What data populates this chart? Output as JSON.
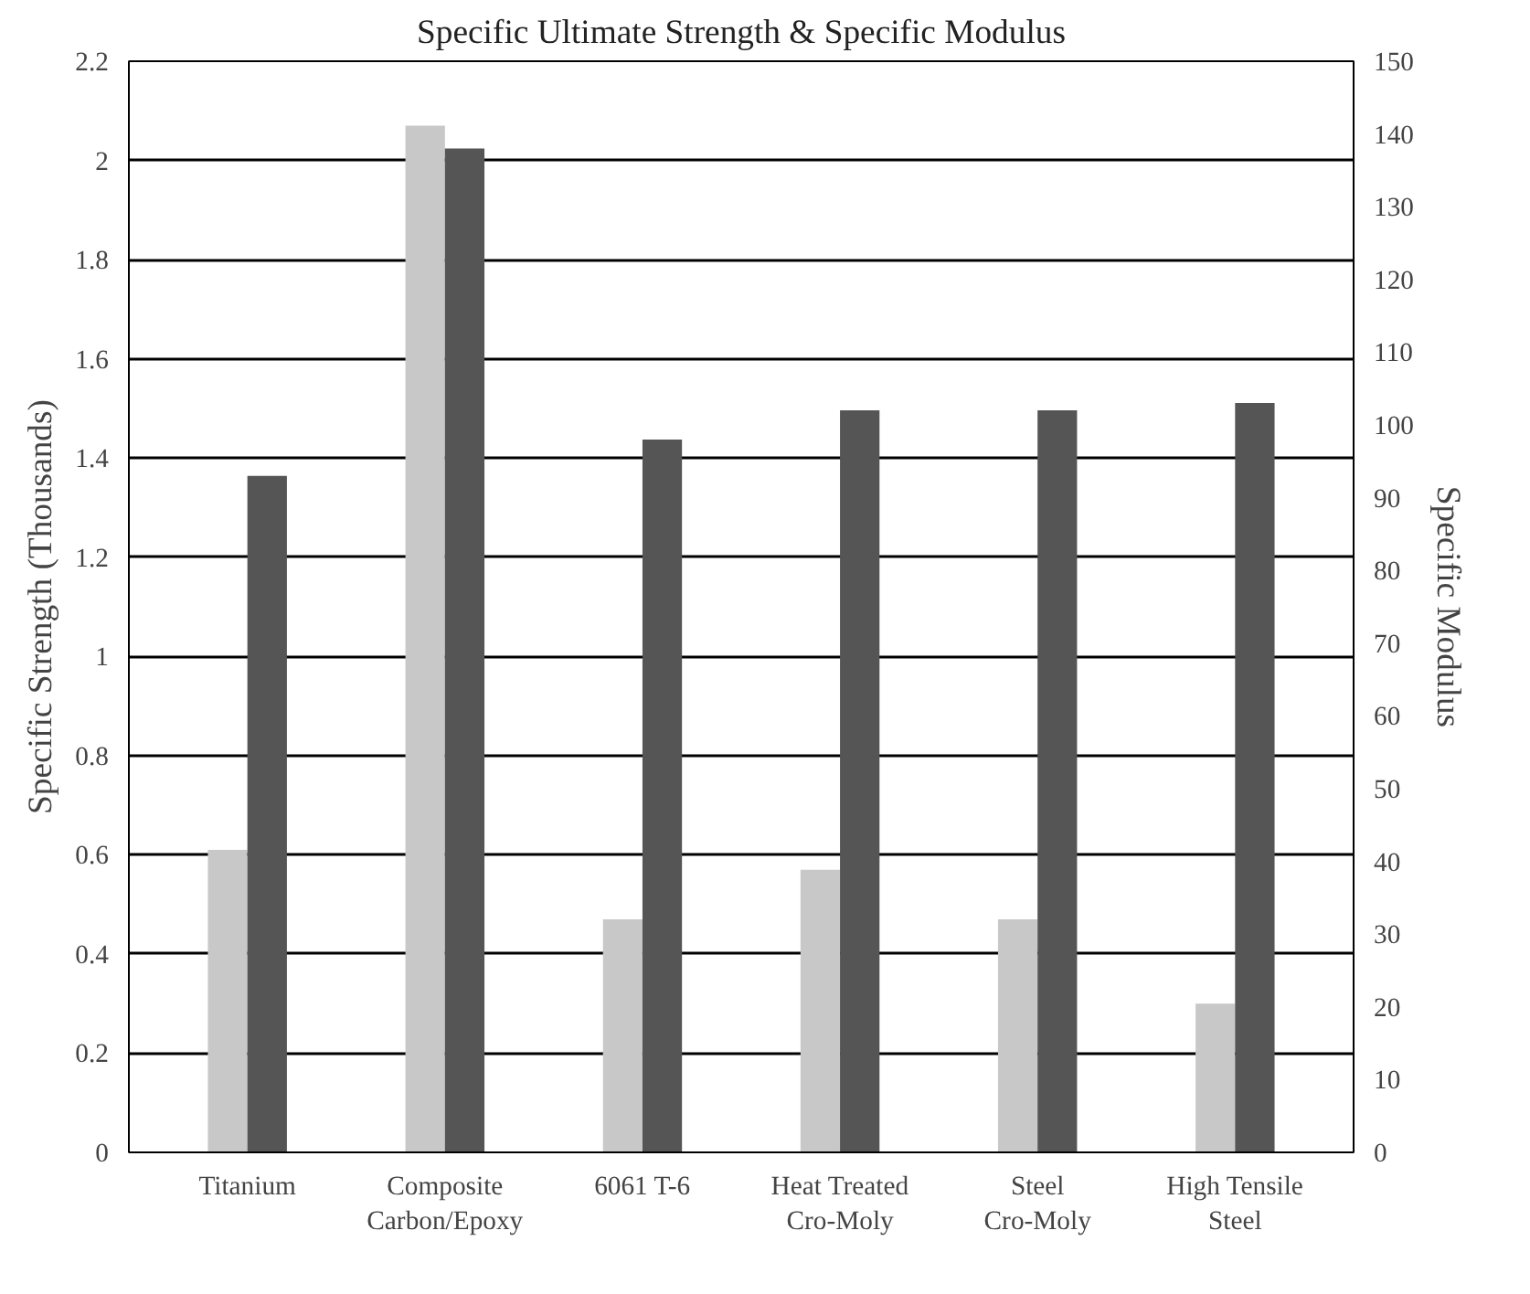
{
  "chart_data": {
    "type": "bar",
    "title": "Specific Ultimate Strength & Specific Modulus",
    "ylabel": "Specific Strength (Thousands)",
    "y2label": "Specific Modulus",
    "categories": [
      "Titanium",
      "Composite\nCarbon/Epoxy",
      "6061 T-6",
      "Heat Treated\nCro-Moly",
      "Steel\nCro-Moly",
      "High Tensile\nSteel"
    ],
    "series": [
      {
        "color": "#c8c8c8",
        "values": [
          0.61,
          2.07,
          0.47,
          0.57,
          0.47,
          0.3
        ]
      },
      {
        "color": "#555555",
        "axis": "y2",
        "values": [
          93,
          138,
          98,
          102,
          102,
          103
        ]
      }
    ],
    "ylim": [
      0,
      2.2
    ],
    "yticks": [
      0,
      0.2,
      0.4,
      0.6,
      0.8,
      1,
      1.2,
      1.4,
      1.6,
      1.8,
      2,
      2.2
    ],
    "y2lim": [
      0,
      150
    ],
    "y2ticks": [
      0,
      10,
      20,
      30,
      40,
      50,
      60,
      70,
      80,
      90,
      100,
      110,
      120,
      130,
      140,
      150
    ],
    "grid": "y"
  }
}
